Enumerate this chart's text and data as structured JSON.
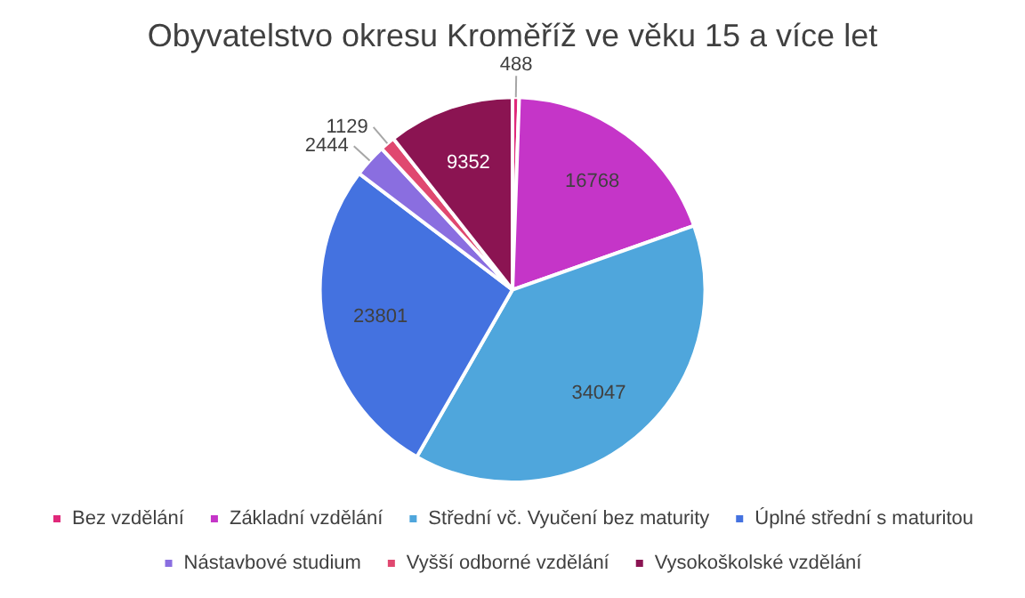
{
  "chart_data": {
    "type": "pie",
    "title": "Obyvatelstvo okresu Kroměříž ve věku 15 a více let",
    "categories": [
      "Bez vzdělání",
      "Základní vzdělání",
      "Střední vč. Vyučení bez maturity",
      "Úplné střední s maturitou",
      "Nástavbové studium",
      "Vyšší odborné vzdělání",
      "Vysokoškolské vzdělání"
    ],
    "values": [
      488,
      16768,
      34047,
      23801,
      2444,
      1129,
      9352
    ],
    "colors": [
      "#e0287a",
      "#c535c8",
      "#4fa6dc",
      "#4472e0",
      "#8a6ee0",
      "#e04870",
      "#8b1452"
    ],
    "data_labels": true,
    "legend": "bottom"
  }
}
